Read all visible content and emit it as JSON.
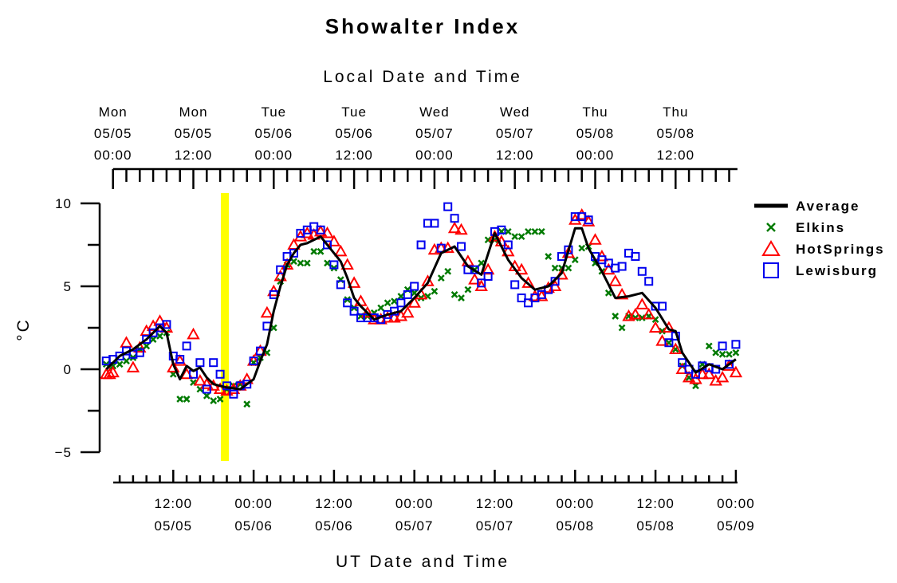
{
  "chart_data": {
    "type": "line",
    "title": "Showalter Index",
    "top_axis_label": "Local Date and Time",
    "bottom_axis_label": "UT Date and Time",
    "ylabel": "°C",
    "ylim": [
      -5,
      10
    ],
    "y_ticks": [
      "10",
      "5",
      "0",
      "−5"
    ],
    "x_unit": "hours since 05/05 00:00 UT",
    "xlim": [
      2,
      96
    ],
    "bottom_ticks": [
      {
        "x": 12,
        "line1": "12:00",
        "line2": "05/05"
      },
      {
        "x": 24,
        "line1": "00:00",
        "line2": "05/06"
      },
      {
        "x": 36,
        "line1": "12:00",
        "line2": "05/06"
      },
      {
        "x": 48,
        "line1": "00:00",
        "line2": "05/07"
      },
      {
        "x": 60,
        "line1": "12:00",
        "line2": "05/07"
      },
      {
        "x": 72,
        "line1": "00:00",
        "line2": "05/08"
      },
      {
        "x": 84,
        "line1": "12:00",
        "line2": "05/08"
      },
      {
        "x": 96,
        "line1": "00:00",
        "line2": "05/09"
      }
    ],
    "top_ticks": [
      {
        "x": 3,
        "line1": "Mon",
        "line2": "05/05",
        "line3": "00:00"
      },
      {
        "x": 15,
        "line1": "Mon",
        "line2": "05/05",
        "line3": "12:00"
      },
      {
        "x": 27,
        "line1": "Tue",
        "line2": "05/06",
        "line3": "00:00"
      },
      {
        "x": 39,
        "line1": "Tue",
        "line2": "05/06",
        "line3": "12:00"
      },
      {
        "x": 51,
        "line1": "Wed",
        "line2": "05/07",
        "line3": "00:00"
      },
      {
        "x": 63,
        "line1": "Wed",
        "line2": "05/07",
        "line3": "12:00"
      },
      {
        "x": 75,
        "line1": "Thu",
        "line2": "05/08",
        "line3": "00:00"
      },
      {
        "x": 87,
        "line1": "Thu",
        "line2": "05/08",
        "line3": "12:00"
      }
    ],
    "highlight": {
      "x": 19.7,
      "color": "#ffff00"
    },
    "series": [
      {
        "name": "Average",
        "style": "line",
        "color": "#000000",
        "x": [
          2,
          4,
          6,
          8,
          10,
          11,
          12,
          13,
          14,
          15,
          16,
          17,
          18,
          19,
          20,
          22,
          24,
          25,
          26,
          27,
          28,
          29,
          30,
          31,
          32,
          34,
          36,
          37,
          38,
          39,
          40,
          42,
          44,
          46,
          48,
          50,
          52,
          54,
          56,
          58,
          60,
          62,
          64,
          66,
          68,
          70,
          72,
          73,
          74,
          76,
          78,
          80,
          82,
          84,
          86,
          87,
          88,
          90,
          92,
          94,
          96
        ],
        "y": [
          0,
          0.8,
          1.2,
          1.8,
          2.6,
          2.2,
          0.3,
          -0.6,
          0.2,
          -0.1,
          0.1,
          -0.5,
          -0.9,
          -1.0,
          -1.1,
          -1.2,
          -0.6,
          0.5,
          1.5,
          3.5,
          5.0,
          6.3,
          7.0,
          7.5,
          7.6,
          8.0,
          7.0,
          6.5,
          5.5,
          4.3,
          3.8,
          3.0,
          3.3,
          3.5,
          4.3,
          5.2,
          7.0,
          7.4,
          6.2,
          5.7,
          8.2,
          6.6,
          5.5,
          4.8,
          5.0,
          5.8,
          8.5,
          8.5,
          7.3,
          5.9,
          4.3,
          4.4,
          4.6,
          3.7,
          2.4,
          2.3,
          1.0,
          -0.2,
          0.3,
          0.0,
          0.6
        ]
      },
      {
        "name": "Elkins",
        "style": "x",
        "color": "#007a00",
        "x": [
          2,
          3,
          4,
          5,
          6,
          7,
          8,
          9,
          10,
          11,
          12,
          13,
          14,
          15,
          16,
          17,
          18,
          19,
          20,
          21,
          22,
          23,
          24,
          25,
          26,
          27,
          28,
          29,
          30,
          31,
          32,
          33,
          34,
          35,
          36,
          37,
          38,
          39,
          40,
          41,
          42,
          43,
          44,
          45,
          46,
          47,
          48,
          49,
          50,
          51,
          52,
          53,
          54,
          55,
          56,
          57,
          58,
          59,
          60,
          61,
          62,
          63,
          64,
          65,
          66,
          67,
          68,
          69,
          70,
          71,
          72,
          73,
          74,
          75,
          76,
          77,
          78,
          79,
          80,
          81,
          82,
          83,
          84,
          85,
          86,
          87,
          88,
          89,
          90,
          91,
          92,
          93,
          94,
          95,
          96
        ],
        "y": [
          0.3,
          0.2,
          0.3,
          0.5,
          0.7,
          1.2,
          1.4,
          1.8,
          2.0,
          2.2,
          -0.3,
          -1.8,
          -1.8,
          -0.8,
          -1.2,
          -1.6,
          -1.9,
          -1.8,
          -1.2,
          -1.0,
          -0.9,
          -2.1,
          0.4,
          0.7,
          1.0,
          2.5,
          5.3,
          6.3,
          6.5,
          6.4,
          6.4,
          7.1,
          7.1,
          6.4,
          6.1,
          5.4,
          4.2,
          3.7,
          3.2,
          3.2,
          3.4,
          3.7,
          4.0,
          4.1,
          4.4,
          4.8,
          4.6,
          4.3,
          4.4,
          4.7,
          5.5,
          5.9,
          4.5,
          4.3,
          4.8,
          6.0,
          6.4,
          7.8,
          7.8,
          8.3,
          8.3,
          8.0,
          8.0,
          8.3,
          8.3,
          8.3,
          6.8,
          6.1,
          6.1,
          6.1,
          6.6,
          7.3,
          7.4,
          6.4,
          5.9,
          4.6,
          3.2,
          2.5,
          3.2,
          3.1,
          3.1,
          3.2,
          3.0,
          2.3,
          1.6,
          1.2,
          0.2,
          -0.5,
          -1.0,
          0.3,
          1.4,
          1.0,
          0.9,
          0.9,
          1.0
        ]
      },
      {
        "name": "HotSprings",
        "style": "triangle",
        "color": "#ff0000",
        "x": [
          2,
          2.5,
          3,
          5,
          6,
          7,
          8,
          9,
          10,
          11,
          12,
          13,
          14,
          15,
          16,
          17,
          18,
          19,
          20,
          21,
          22,
          23,
          24,
          25,
          26,
          27,
          28,
          29,
          30,
          31,
          32,
          33,
          34,
          35,
          36,
          37,
          38,
          39,
          40,
          41,
          42,
          43,
          44,
          45,
          46,
          47,
          48,
          49,
          50,
          51,
          52,
          53,
          54,
          55,
          56,
          57,
          58,
          59,
          60,
          61,
          62,
          63,
          64,
          65,
          66,
          67,
          68,
          69,
          70,
          71,
          72,
          73,
          74,
          75,
          76,
          77,
          78,
          79,
          80,
          81,
          82,
          83,
          84,
          85,
          86,
          87,
          88,
          89,
          90,
          91,
          92,
          93,
          94,
          95,
          96
        ],
        "y": [
          -0.3,
          -0.3,
          -0.2,
          1.6,
          0.1,
          1.3,
          2.3,
          2.6,
          2.9,
          2.5,
          0.1,
          0.5,
          -0.3,
          2.1,
          -0.7,
          -0.9,
          -1.0,
          -1.2,
          -1.3,
          -1.2,
          -1.0,
          -0.6,
          0.5,
          1.1,
          3.4,
          4.7,
          5.6,
          6.3,
          7.5,
          8.0,
          8.2,
          8.1,
          8.3,
          8.2,
          7.7,
          7.1,
          6.3,
          5.2,
          4.1,
          3.4,
          3.0,
          3.0,
          3.1,
          3.1,
          3.2,
          3.4,
          4.0,
          4.5,
          5.3,
          7.2,
          7.3,
          7.3,
          8.5,
          8.4,
          6.5,
          5.4,
          5.0,
          6.0,
          8.0,
          7.7,
          7.1,
          6.2,
          6.0,
          5.2,
          4.4,
          4.4,
          4.9,
          5.0,
          5.7,
          7.0,
          9.0,
          9.3,
          8.9,
          7.8,
          6.8,
          6.0,
          5.3,
          4.5,
          3.2,
          3.3,
          3.9,
          3.3,
          2.5,
          1.7,
          2.5,
          1.2,
          0.0,
          -0.5,
          -0.6,
          -0.3,
          -0.3,
          -0.7,
          -0.5,
          0.2,
          -0.2
        ]
      },
      {
        "name": "Lewisburg",
        "style": "square",
        "color": "#0000ee",
        "x": [
          2,
          3,
          4,
          5,
          6,
          7,
          8,
          9,
          10,
          11,
          12,
          13,
          14,
          15,
          16,
          17,
          18,
          19,
          20,
          21,
          22,
          23,
          24,
          25,
          26,
          27,
          28,
          29,
          30,
          31,
          32,
          33,
          34,
          35,
          36,
          37,
          38,
          39,
          40,
          41,
          42,
          43,
          44,
          45,
          46,
          47,
          48,
          49,
          50,
          51,
          52,
          53,
          54,
          55,
          56,
          57,
          58,
          59,
          60,
          61,
          62,
          63,
          64,
          65,
          66,
          67,
          68,
          69,
          70,
          71,
          72,
          73,
          74,
          75,
          76,
          77,
          78,
          79,
          80,
          81,
          82,
          83,
          84,
          85,
          86,
          87,
          88,
          89,
          90,
          91,
          92,
          93,
          94,
          95,
          96
        ],
        "y": [
          0.5,
          0.6,
          0.8,
          1.1,
          0.9,
          1.0,
          1.8,
          2.2,
          2.5,
          2.7,
          0.8,
          0.6,
          1.4,
          -0.3,
          0.4,
          -1.2,
          0.4,
          -0.3,
          -1.0,
          -1.5,
          -1.0,
          -0.9,
          0.5,
          1.1,
          2.6,
          4.5,
          6.0,
          6.8,
          7.0,
          8.2,
          8.4,
          8.6,
          8.4,
          7.5,
          6.3,
          5.1,
          4.0,
          3.5,
          3.1,
          3.1,
          3.1,
          3.0,
          3.3,
          3.5,
          4.0,
          4.5,
          5.0,
          7.5,
          8.8,
          8.8,
          7.3,
          9.8,
          9.1,
          7.4,
          6.0,
          6.0,
          5.2,
          5.6,
          8.3,
          8.4,
          7.5,
          5.1,
          4.3,
          4.0,
          4.3,
          4.5,
          4.8,
          5.3,
          6.8,
          7.2,
          9.2,
          9.2,
          9.0,
          6.8,
          6.6,
          6.4,
          6.1,
          6.2,
          7.0,
          6.8,
          5.9,
          5.3,
          3.8,
          3.8,
          1.6,
          2.0,
          0.4,
          0.0,
          -0.3,
          0.2,
          0.1,
          0.0,
          1.4,
          0.3,
          1.5
        ]
      }
    ]
  }
}
